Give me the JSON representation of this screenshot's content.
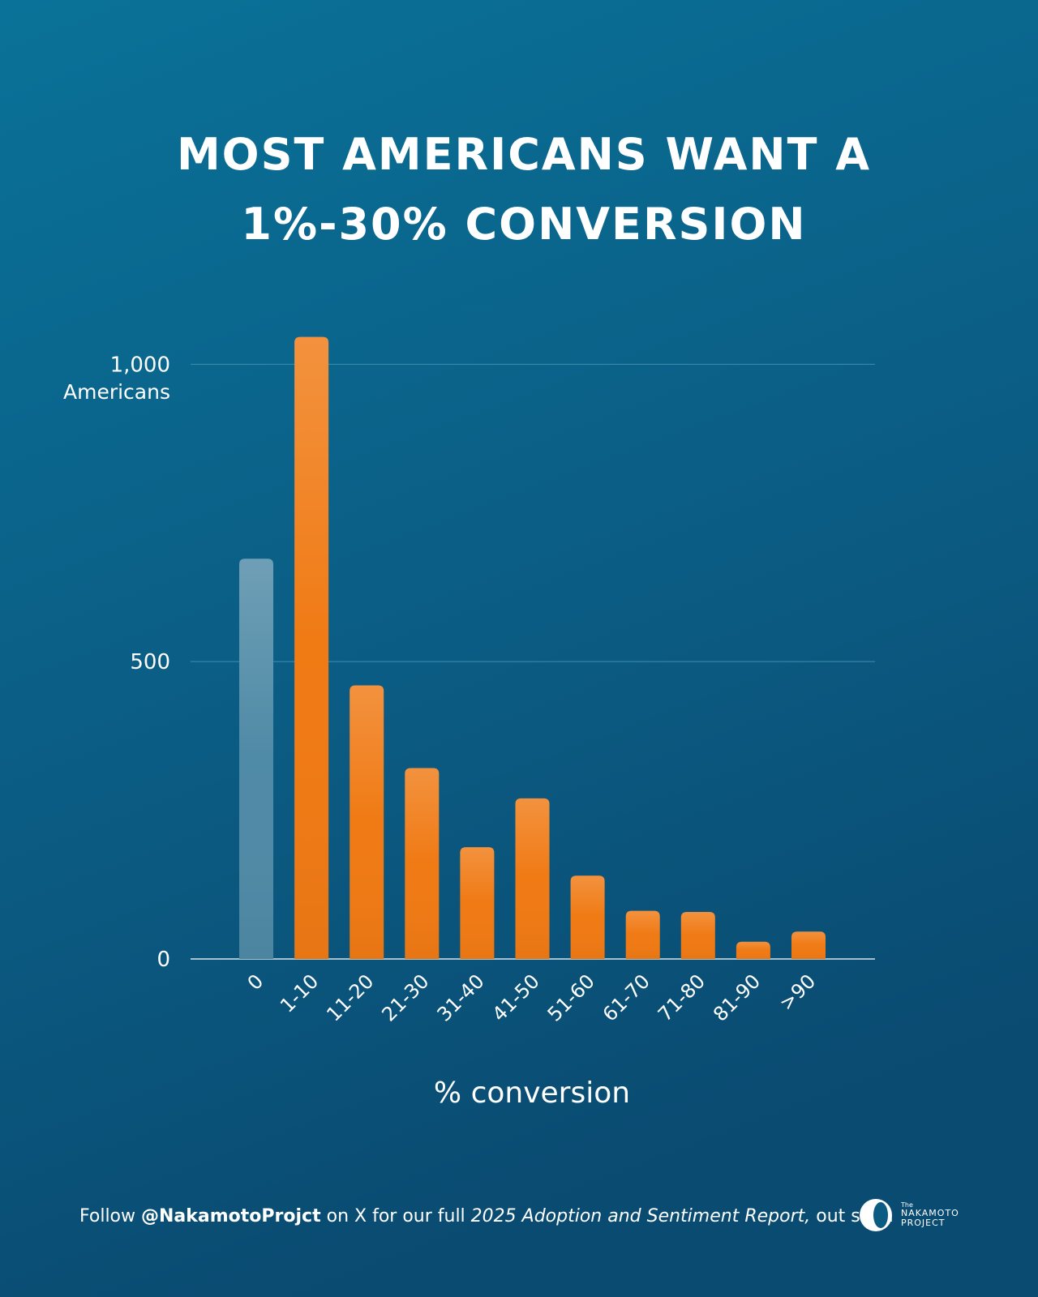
{
  "chart_data": {
    "type": "bar",
    "title_lines": [
      "MOST AMERICANS WANT A",
      "1%-30% CONVERSION"
    ],
    "categories": [
      "0",
      "1-10",
      "11-20",
      "21-30",
      "31-40",
      "41-50",
      "51-60",
      "61-70",
      "71-80",
      "81-90",
      ">90"
    ],
    "values": [
      673,
      1046,
      460,
      321,
      188,
      270,
      140,
      81,
      79,
      29,
      46
    ],
    "colors": [
      "#4f8aa6",
      "#f07a14",
      "#f07a14",
      "#f07a14",
      "#f07a14",
      "#f07a14",
      "#f07a14",
      "#f07a14",
      "#f07a14",
      "#f07a14",
      "#f07a14"
    ],
    "ylim": [
      0,
      1100
    ],
    "yticks": [
      0,
      500,
      {
        "value": 1000,
        "label": "1,000"
      }
    ],
    "ylabel": "Americans",
    "xlabel": "% conversion",
    "grid": true
  },
  "footer": {
    "parts": [
      "Follow",
      "@NakamotoProjct",
      "on X for our full",
      "2025 Adoption and Sentiment Report,",
      "out soon"
    ],
    "logo": [
      "The",
      "NAKAMOTO",
      "PROJECT"
    ]
  }
}
